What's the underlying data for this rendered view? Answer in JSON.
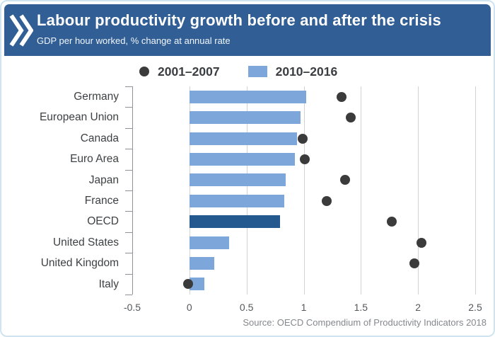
{
  "header": {
    "title": "Labour productivity growth before and after the crisis",
    "subtitle": "GDP per hour worked, % change at annual rate",
    "logo_icon": "oecd-double-chevron",
    "background_color": "#305E95"
  },
  "legend": [
    {
      "label": "2001–2007",
      "marker": "dot",
      "color": "#3B3B3B"
    },
    {
      "label": "2010–2016",
      "marker": "square",
      "color": "#7DA7DB"
    }
  ],
  "chart_data": {
    "type": "bar",
    "orientation": "horizontal",
    "title": "Labour productivity growth before and after the crisis",
    "subtitle": "GDP per hour worked, % change at annual rate",
    "xlabel": "",
    "ylabel": "",
    "categories": [
      "Germany",
      "European Union",
      "Canada",
      "Euro Area",
      "Japan",
      "France",
      "OECD",
      "United States",
      "United Kingdom",
      "Italy"
    ],
    "series": [
      {
        "name": "2001–2007",
        "type": "scatter",
        "marker": "dot",
        "color": "#3B3B3B",
        "values": [
          1.33,
          1.41,
          0.99,
          1.01,
          1.36,
          1.2,
          1.77,
          2.03,
          1.97,
          -0.01
        ]
      },
      {
        "name": "2010–2016",
        "type": "bar",
        "color": "#7DA7DB",
        "highlight": {
          "category": "OECD",
          "color": "#23598F"
        },
        "values": [
          1.02,
          0.97,
          0.94,
          0.92,
          0.84,
          0.83,
          0.79,
          0.35,
          0.22,
          0.13
        ]
      }
    ],
    "xlim": [
      -0.5,
      2.5
    ],
    "xticks": [
      -0.5,
      0,
      0.5,
      1,
      1.5,
      2,
      2.5
    ],
    "xtick_labels": [
      "-0.5",
      "0",
      "0.5",
      "1",
      "1.5",
      "2",
      "2.5"
    ],
    "grid": true,
    "legend_position": "top-center"
  },
  "source": "Source: OECD Compendium of Productivity Indicators 2018"
}
